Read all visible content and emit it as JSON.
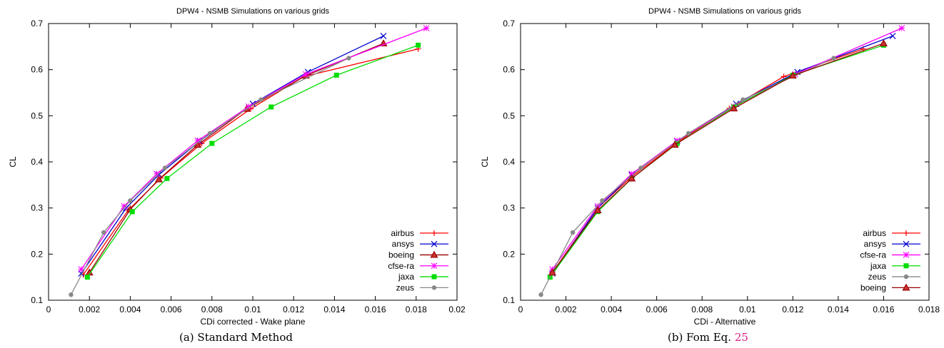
{
  "chart_data": [
    {
      "type": "line",
      "title": "DPW4 - NSMB Simulations on various grids",
      "xlabel": "CDi corrected - Wake plane",
      "ylabel": "CL",
      "xlim": [
        0,
        0.02
      ],
      "ylim": [
        0.1,
        0.7
      ],
      "xticks": [
        "0",
        "0.002",
        "0.004",
        "0.006",
        "0.008",
        "0.01",
        "0.012",
        "0.014",
        "0.016",
        "0.018",
        "0.02"
      ],
      "yticks": [
        "0.1",
        "0.2",
        "0.3",
        "0.4",
        "0.5",
        "0.6",
        "0.7"
      ],
      "legend_position": "bottom-right",
      "grid": false,
      "caption_label": "(a) Standard Method",
      "series": [
        {
          "name": "airbus",
          "color": "#ff0000",
          "marker": "plus",
          "x": [
            0.0017,
            0.0039,
            0.0055,
            0.0075,
            0.0099,
            0.0125,
            0.0181
          ],
          "y": [
            0.155,
            0.295,
            0.365,
            0.44,
            0.515,
            0.585,
            0.645
          ]
        },
        {
          "name": "ansys",
          "color": "#0000cc",
          "marker": "x",
          "x": [
            0.0016,
            0.0038,
            0.0054,
            0.0074,
            0.01,
            0.0127,
            0.0164
          ],
          "y": [
            0.158,
            0.3,
            0.372,
            0.445,
            0.526,
            0.595,
            0.673
          ]
        },
        {
          "name": "boeing",
          "color": "#990000",
          "marker": "triangle",
          "x": [
            0.002,
            0.004,
            0.0054,
            0.0073,
            0.0097,
            0.0126,
            0.0164
          ],
          "y": [
            0.16,
            0.297,
            0.362,
            0.437,
            0.515,
            0.587,
            0.657
          ]
        },
        {
          "name": "cfse-ra",
          "color": "#ff00ff",
          "marker": "star",
          "x": [
            0.0016,
            0.0037,
            0.0053,
            0.0073,
            0.0098,
            0.0126,
            0.0185
          ],
          "y": [
            0.167,
            0.304,
            0.374,
            0.446,
            0.52,
            0.59,
            0.69
          ]
        },
        {
          "name": "jaxa",
          "color": "#00dd00",
          "marker": "square",
          "x": [
            0.0019,
            0.0041,
            0.0058,
            0.008,
            0.0109,
            0.0141,
            0.0181
          ],
          "y": [
            0.15,
            0.292,
            0.364,
            0.44,
            0.519,
            0.588,
            0.653
          ]
        },
        {
          "name": "zeus",
          "color": "#888888",
          "marker": "circle",
          "x": [
            0.0011,
            0.0027,
            0.004,
            0.0057,
            0.0079,
            0.0104,
            0.0147
          ],
          "y": [
            0.112,
            0.247,
            0.316,
            0.387,
            0.462,
            0.535,
            0.625
          ]
        }
      ]
    },
    {
      "type": "line",
      "title": "DPW4 - NSMB Simulations on various grids",
      "xlabel": "CDi - Alternative",
      "ylabel": "CL",
      "xlim": [
        0,
        0.018
      ],
      "ylim": [
        0.1,
        0.7
      ],
      "xticks": [
        "0",
        "0.002",
        "0.004",
        "0.006",
        "0.008",
        "0.01",
        "0.012",
        "0.014",
        "0.016",
        "0.018"
      ],
      "yticks": [
        "0.1",
        "0.2",
        "0.3",
        "0.4",
        "0.5",
        "0.6",
        "0.7"
      ],
      "legend_position": "bottom-right",
      "grid": false,
      "caption_label": "(b) Fom Eq.",
      "caption_ref": "25",
      "series": [
        {
          "name": "airbus",
          "color": "#ff0000",
          "marker": "plus",
          "x": [
            0.0014,
            0.0034,
            0.0049,
            0.0069,
            0.0092,
            0.0116,
            0.0151
          ],
          "y": [
            0.16,
            0.3,
            0.368,
            0.442,
            0.516,
            0.585,
            0.645
          ]
        },
        {
          "name": "ansys",
          "color": "#0000cc",
          "marker": "x",
          "x": [
            0.0014,
            0.0034,
            0.0049,
            0.0069,
            0.0095,
            0.0122,
            0.0164
          ],
          "y": [
            0.158,
            0.3,
            0.372,
            0.445,
            0.526,
            0.595,
            0.673
          ]
        },
        {
          "name": "cfse-ra",
          "color": "#ff00ff",
          "marker": "star",
          "x": [
            0.0014,
            0.0034,
            0.0049,
            0.0069,
            0.0094,
            0.0121,
            0.0168
          ],
          "y": [
            0.167,
            0.304,
            0.374,
            0.446,
            0.52,
            0.59,
            0.69
          ]
        },
        {
          "name": "jaxa",
          "color": "#00dd00",
          "marker": "square",
          "x": [
            0.0013,
            0.0034,
            0.0049,
            0.0069,
            0.0094,
            0.012,
            0.016
          ],
          "y": [
            0.15,
            0.292,
            0.364,
            0.44,
            0.519,
            0.588,
            0.653
          ]
        },
        {
          "name": "zeus",
          "color": "#888888",
          "marker": "circle",
          "x": [
            0.0009,
            0.0023,
            0.0036,
            0.0053,
            0.0074,
            0.0098,
            0.0138
          ],
          "y": [
            0.112,
            0.247,
            0.316,
            0.387,
            0.462,
            0.535,
            0.625
          ]
        },
        {
          "name": "boeing",
          "color": "#990000",
          "marker": "triangle",
          "x": [
            0.0014,
            0.0034,
            0.0049,
            0.0068,
            0.0094,
            0.012,
            0.016
          ],
          "y": [
            0.16,
            0.295,
            0.364,
            0.437,
            0.516,
            0.587,
            0.657
          ]
        }
      ]
    }
  ]
}
